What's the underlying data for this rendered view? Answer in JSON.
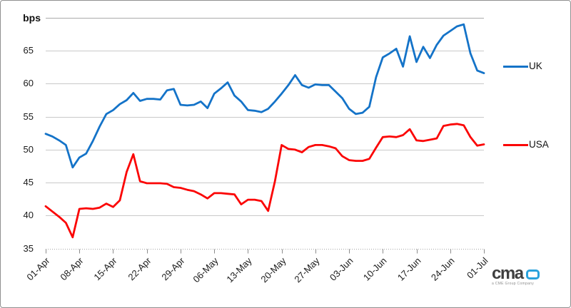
{
  "chart_data": {
    "type": "line",
    "title": "",
    "unit_label": "bps",
    "ylim": [
      35,
      70
    ],
    "ytick_interval": 5,
    "ytick_labels": [
      "65",
      "60",
      "55",
      "50",
      "45",
      "40",
      "35"
    ],
    "grid": true,
    "legend_position": "right-outside",
    "x_tick_labels": [
      "01-Apr",
      "08-Apr",
      "15-Apr",
      "22-Apr",
      "29-Apr",
      "06-May",
      "13-May",
      "20-May",
      "27-May",
      "03-Jun",
      "10-Jun",
      "17-Jun",
      "24-Jun",
      "01-Jul"
    ],
    "points_per_x_tick": 5,
    "series": [
      {
        "name": "UK",
        "color": "#1473c8",
        "values": [
          52.4,
          52.0,
          51.4,
          50.7,
          47.3,
          48.8,
          49.4,
          51.3,
          53.5,
          55.4,
          56.0,
          56.9,
          57.5,
          58.6,
          57.4,
          57.7,
          57.7,
          57.6,
          59.0,
          59.2,
          56.8,
          56.7,
          56.8,
          57.3,
          56.3,
          58.5,
          59.3,
          60.2,
          58.2,
          57.3,
          56.0,
          55.9,
          55.7,
          56.2,
          57.3,
          58.5,
          59.8,
          61.3,
          59.8,
          59.4,
          59.9,
          59.8,
          59.8,
          58.8,
          57.8,
          56.2,
          55.4,
          55.6,
          56.5,
          61.0,
          64.0,
          64.6,
          65.3,
          62.6,
          67.2,
          63.3,
          65.6,
          63.9,
          65.9,
          67.3,
          68.0,
          68.7,
          69.0,
          64.6,
          62.0,
          61.6
        ]
      },
      {
        "name": "USA",
        "color": "#fb0505",
        "values": [
          41.4,
          40.6,
          39.8,
          38.9,
          36.7,
          41.0,
          41.1,
          41.0,
          41.2,
          41.8,
          41.3,
          42.3,
          46.6,
          49.3,
          45.2,
          44.9,
          44.9,
          44.9,
          44.8,
          44.3,
          44.2,
          43.9,
          43.7,
          43.2,
          42.6,
          43.4,
          43.4,
          43.3,
          43.2,
          41.7,
          42.4,
          42.4,
          42.2,
          40.7,
          45.2,
          50.7,
          50.1,
          50.0,
          49.6,
          50.4,
          50.7,
          50.7,
          50.5,
          50.2,
          49.0,
          48.4,
          48.3,
          48.3,
          48.6,
          50.3,
          51.9,
          52.0,
          51.9,
          52.2,
          53.1,
          51.4,
          51.3,
          51.5,
          51.7,
          53.6,
          53.8,
          53.9,
          53.7,
          51.9,
          50.6,
          50.8
        ]
      }
    ]
  },
  "branding": {
    "logo_text": "cma",
    "logo_tagline": "a CME Group Company",
    "logo_mark_color": "#2aa2dc"
  }
}
